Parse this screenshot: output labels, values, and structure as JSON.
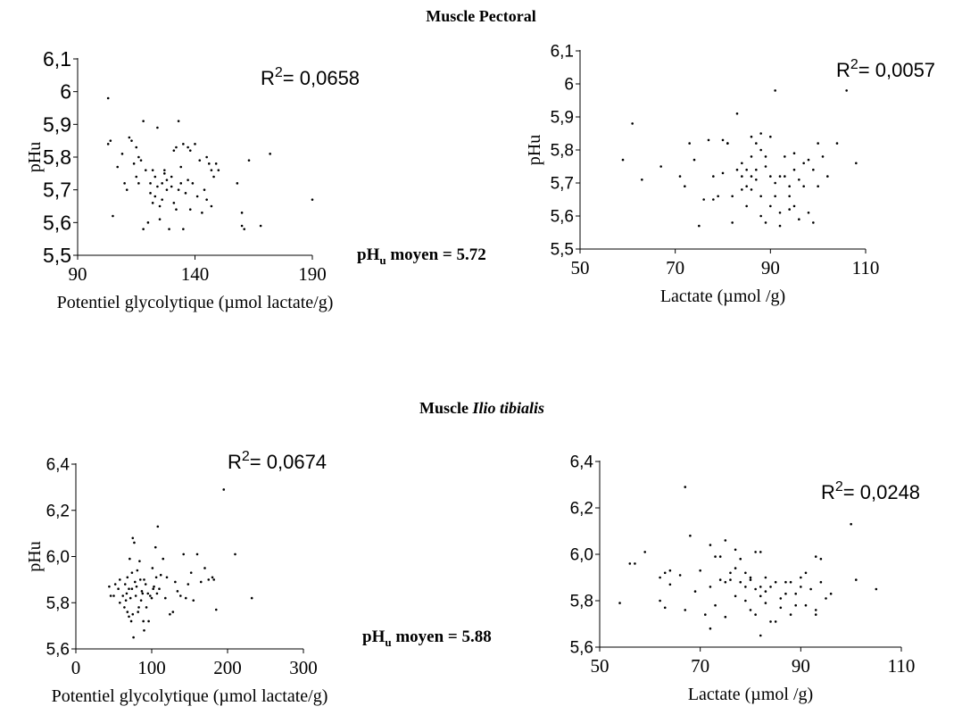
{
  "sections": [
    {
      "title_prefix": "Muscle ",
      "title_italic": "Pectoral",
      "title_italic_is_bold_upright": true
    },
    {
      "title_prefix": "Muscle ",
      "title_italic": "Ilio tibialis",
      "title_italic_is_bold_upright": false
    }
  ],
  "means": [
    {
      "prefix": "pH",
      "sub": "u",
      "suffix": " moyen = 5.72"
    },
    {
      "prefix": "pH",
      "sub": "u",
      "suffix": " moyen = 5.88"
    }
  ],
  "chart_data": [
    {
      "type": "scatter",
      "section": "Muscle Pectoral",
      "xlabel": "Potentiel glycolytique (µmol lactate/g)",
      "ylabel": "pHu",
      "xlim": [
        90,
        190
      ],
      "ylim": [
        5.5,
        6.1
      ],
      "xticks": [
        90,
        140,
        190
      ],
      "xtick_labels": [
        "90",
        "140",
        "190"
      ],
      "yticks": [
        5.5,
        5.6,
        5.7,
        5.8,
        5.9,
        6,
        6.1
      ],
      "ytick_labels": [
        "5,5",
        "5,6",
        "5,7",
        "5,8",
        "5,9",
        "6",
        "6,1"
      ],
      "r2": {
        "prefix": "R",
        "sup": "2",
        "suffix": "= 0,0658"
      },
      "grid": false,
      "points": [
        [
          103,
          5.98
        ],
        [
          103,
          5.84
        ],
        [
          104,
          5.85
        ],
        [
          105,
          5.62
        ],
        [
          107,
          5.77
        ],
        [
          109,
          5.81
        ],
        [
          110,
          5.72
        ],
        [
          111,
          5.7
        ],
        [
          112,
          5.86
        ],
        [
          113,
          5.85
        ],
        [
          114,
          5.78
        ],
        [
          115,
          5.83
        ],
        [
          115,
          5.74
        ],
        [
          116,
          5.8
        ],
        [
          117,
          5.79
        ],
        [
          118,
          5.91
        ],
        [
          118,
          5.58
        ],
        [
          119,
          5.76
        ],
        [
          120,
          5.6
        ],
        [
          121,
          5.72
        ],
        [
          121,
          5.69
        ],
        [
          122,
          5.76
        ],
        [
          122,
          5.66
        ],
        [
          123,
          5.68
        ],
        [
          123,
          5.74
        ],
        [
          124,
          5.89
        ],
        [
          124,
          5.71
        ],
        [
          125,
          5.65
        ],
        [
          125,
          5.61
        ],
        [
          126,
          5.72
        ],
        [
          126,
          5.67
        ],
        [
          127,
          5.76
        ],
        [
          127,
          5.75
        ],
        [
          128,
          5.73
        ],
        [
          128,
          5.7
        ],
        [
          129,
          5.58
        ],
        [
          130,
          5.71
        ],
        [
          130,
          5.74
        ],
        [
          131,
          5.82
        ],
        [
          131,
          5.66
        ],
        [
          132,
          5.64
        ],
        [
          132,
          5.83
        ],
        [
          133,
          5.91
        ],
        [
          133,
          5.7
        ],
        [
          134,
          5.77
        ],
        [
          134,
          5.72
        ],
        [
          135,
          5.58
        ],
        [
          135,
          5.84
        ],
        [
          136,
          5.69
        ],
        [
          137,
          5.73
        ],
        [
          138,
          5.82
        ],
        [
          138,
          5.64
        ],
        [
          139,
          5.72
        ],
        [
          140,
          5.84
        ],
        [
          141,
          5.68
        ],
        [
          142,
          5.79
        ],
        [
          143,
          5.63
        ],
        [
          144,
          5.7
        ],
        [
          145,
          5.8
        ],
        [
          145,
          5.67
        ],
        [
          146,
          5.78
        ],
        [
          147,
          5.76
        ],
        [
          147,
          5.65
        ],
        [
          148,
          5.74
        ],
        [
          149,
          5.78
        ],
        [
          150,
          5.76
        ],
        [
          158,
          5.72
        ],
        [
          160,
          5.63
        ],
        [
          161,
          5.58
        ],
        [
          163,
          5.79
        ],
        [
          168,
          5.59
        ],
        [
          172,
          5.81
        ],
        [
          190,
          5.67
        ],
        [
          160,
          5.59
        ],
        [
          137,
          5.83
        ],
        [
          116,
          5.72
        ]
      ]
    },
    {
      "type": "scatter",
      "section": "Muscle Pectoral",
      "xlabel": "Lactate (µmol /g)",
      "ylabel": "pHu",
      "xlim": [
        50,
        110
      ],
      "ylim": [
        5.5,
        6.1
      ],
      "xticks": [
        50,
        70,
        90,
        110
      ],
      "xtick_labels": [
        "50",
        "70",
        "90",
        "110"
      ],
      "yticks": [
        5.5,
        5.6,
        5.7,
        5.8,
        5.9,
        6,
        6.1
      ],
      "ytick_labels": [
        "5,5",
        "5,6",
        "5,7",
        "5,8",
        "5,9",
        "6",
        "6,1"
      ],
      "r2": {
        "prefix": "R",
        "sup": "2",
        "suffix": "= 0,0057"
      },
      "grid": false,
      "points": [
        [
          59,
          5.77
        ],
        [
          61,
          5.88
        ],
        [
          63,
          5.71
        ],
        [
          67,
          5.75
        ],
        [
          71,
          5.72
        ],
        [
          72,
          5.69
        ],
        [
          73,
          5.82
        ],
        [
          74,
          5.77
        ],
        [
          75,
          5.57
        ],
        [
          76,
          5.65
        ],
        [
          77,
          5.83
        ],
        [
          78,
          5.65
        ],
        [
          79,
          5.66
        ],
        [
          80,
          5.83
        ],
        [
          80,
          5.73
        ],
        [
          81,
          5.82
        ],
        [
          82,
          5.58
        ],
        [
          82,
          5.66
        ],
        [
          83,
          5.91
        ],
        [
          83,
          5.74
        ],
        [
          84,
          5.68
        ],
        [
          84,
          5.72
        ],
        [
          84,
          5.76
        ],
        [
          85,
          5.74
        ],
        [
          85,
          5.69
        ],
        [
          85,
          5.63
        ],
        [
          86,
          5.72
        ],
        [
          86,
          5.68
        ],
        [
          86,
          5.78
        ],
        [
          87,
          5.74
        ],
        [
          87,
          5.82
        ],
        [
          87,
          5.71
        ],
        [
          88,
          5.8
        ],
        [
          88,
          5.66
        ],
        [
          88,
          5.6
        ],
        [
          89,
          5.75
        ],
        [
          89,
          5.58
        ],
        [
          89,
          5.78
        ],
        [
          90,
          5.72
        ],
        [
          90,
          5.63
        ],
        [
          90,
          5.84
        ],
        [
          91,
          5.98
        ],
        [
          91,
          5.7
        ],
        [
          91,
          5.66
        ],
        [
          92,
          5.72
        ],
        [
          92,
          5.61
        ],
        [
          92,
          5.57
        ],
        [
          93,
          5.72
        ],
        [
          93,
          5.78
        ],
        [
          94,
          5.69
        ],
        [
          94,
          5.66
        ],
        [
          94,
          5.62
        ],
        [
          95,
          5.74
        ],
        [
          95,
          5.79
        ],
        [
          95,
          5.63
        ],
        [
          96,
          5.71
        ],
        [
          96,
          5.59
        ],
        [
          97,
          5.69
        ],
        [
          97,
          5.76
        ],
        [
          98,
          5.77
        ],
        [
          98,
          5.61
        ],
        [
          99,
          5.74
        ],
        [
          99,
          5.58
        ],
        [
          100,
          5.82
        ],
        [
          100,
          5.69
        ],
        [
          101,
          5.78
        ],
        [
          102,
          5.72
        ],
        [
          104,
          5.82
        ],
        [
          106,
          5.98
        ],
        [
          108,
          5.76
        ],
        [
          81,
          5.82
        ],
        [
          86,
          5.84
        ],
        [
          78,
          5.72
        ],
        [
          88,
          5.85
        ]
      ]
    },
    {
      "type": "scatter",
      "section": "Muscle Ilio tibialis",
      "xlabel": "Potentiel glycolytique (µmol lactate/g)",
      "ylabel": "pHu",
      "xlim": [
        0,
        300
      ],
      "ylim": [
        5.6,
        6.4
      ],
      "xticks": [
        0,
        100,
        200,
        300
      ],
      "xtick_labels": [
        "0",
        "100",
        "200",
        "300"
      ],
      "yticks": [
        5.6,
        5.8,
        6.0,
        6.2,
        6.4
      ],
      "ytick_labels": [
        "5,6",
        "5,8",
        "6,0",
        "6,2",
        "6,4"
      ],
      "r2": {
        "prefix": "R",
        "sup": "2",
        "suffix": "= 0,0674"
      },
      "grid": false,
      "points": [
        [
          44,
          5.87
        ],
        [
          46,
          5.83
        ],
        [
          50,
          5.83
        ],
        [
          52,
          5.88
        ],
        [
          56,
          5.86
        ],
        [
          58,
          5.9
        ],
        [
          58,
          5.8
        ],
        [
          62,
          5.83
        ],
        [
          64,
          5.78
        ],
        [
          65,
          5.88
        ],
        [
          66,
          5.81
        ],
        [
          67,
          5.84
        ],
        [
          68,
          5.76
        ],
        [
          68,
          5.91
        ],
        [
          70,
          5.86
        ],
        [
          70,
          5.74
        ],
        [
          71,
          5.99
        ],
        [
          72,
          5.82
        ],
        [
          73,
          5.72
        ],
        [
          74,
          5.86
        ],
        [
          74,
          5.93
        ],
        [
          75,
          5.75
        ],
        [
          75,
          6.08
        ],
        [
          76,
          5.65
        ],
        [
          77,
          6.06
        ],
        [
          78,
          5.89
        ],
        [
          79,
          5.83
        ],
        [
          80,
          5.87
        ],
        [
          81,
          5.94
        ],
        [
          82,
          5.76
        ],
        [
          83,
          5.78
        ],
        [
          84,
          5.98
        ],
        [
          85,
          5.9
        ],
        [
          86,
          5.81
        ],
        [
          87,
          5.85
        ],
        [
          88,
          5.84
        ],
        [
          89,
          5.72
        ],
        [
          90,
          5.68
        ],
        [
          90,
          5.9
        ],
        [
          92,
          5.88
        ],
        [
          93,
          5.78
        ],
        [
          95,
          5.84
        ],
        [
          96,
          5.72
        ],
        [
          98,
          5.83
        ],
        [
          100,
          5.82
        ],
        [
          101,
          5.95
        ],
        [
          102,
          5.86
        ],
        [
          103,
          5.87
        ],
        [
          105,
          6.04
        ],
        [
          106,
          5.91
        ],
        [
          107,
          5.84
        ],
        [
          108,
          6.13
        ],
        [
          110,
          5.86
        ],
        [
          112,
          5.92
        ],
        [
          115,
          5.99
        ],
        [
          118,
          5.82
        ],
        [
          120,
          5.91
        ],
        [
          124,
          5.75
        ],
        [
          128,
          5.76
        ],
        [
          131,
          5.89
        ],
        [
          134,
          5.85
        ],
        [
          138,
          5.83
        ],
        [
          142,
          6.01
        ],
        [
          145,
          5.82
        ],
        [
          148,
          5.88
        ],
        [
          152,
          5.93
        ],
        [
          155,
          5.81
        ],
        [
          160,
          6.01
        ],
        [
          165,
          5.89
        ],
        [
          170,
          5.95
        ],
        [
          175,
          5.9
        ],
        [
          180,
          5.91
        ],
        [
          182,
          5.9
        ],
        [
          185,
          5.77
        ],
        [
          195,
          6.29
        ],
        [
          210,
          6.01
        ],
        [
          232,
          5.82
        ]
      ]
    },
    {
      "type": "scatter",
      "section": "Muscle Ilio tibialis",
      "xlabel": "Lactate (µmol /g)",
      "ylabel": "",
      "xlim": [
        50,
        110
      ],
      "ylim": [
        5.6,
        6.4
      ],
      "xticks": [
        50,
        70,
        90,
        110
      ],
      "xtick_labels": [
        "50",
        "70",
        "90",
        "110"
      ],
      "yticks": [
        5.6,
        5.8,
        6.0,
        6.2,
        6.4
      ],
      "ytick_labels": [
        "5,6",
        "5,8",
        "6,0",
        "6,2",
        "6,4"
      ],
      "r2": {
        "prefix": "R",
        "sup": "2",
        "suffix": "= 0,0248"
      },
      "grid": false,
      "points": [
        [
          54,
          5.79
        ],
        [
          56,
          5.96
        ],
        [
          57,
          5.96
        ],
        [
          59,
          6.01
        ],
        [
          62,
          5.8
        ],
        [
          62,
          5.9
        ],
        [
          63,
          5.77
        ],
        [
          63,
          5.92
        ],
        [
          64,
          5.87
        ],
        [
          64,
          5.93
        ],
        [
          66,
          5.91
        ],
        [
          67,
          5.76
        ],
        [
          67,
          6.29
        ],
        [
          68,
          6.08
        ],
        [
          69,
          5.84
        ],
        [
          70,
          5.93
        ],
        [
          71,
          5.74
        ],
        [
          72,
          5.86
        ],
        [
          72,
          6.04
        ],
        [
          72,
          5.68
        ],
        [
          73,
          5.78
        ],
        [
          73,
          5.99
        ],
        [
          74,
          5.89
        ],
        [
          74,
          5.99
        ],
        [
          75,
          6.06
        ],
        [
          75,
          5.88
        ],
        [
          75,
          5.73
        ],
        [
          76,
          5.89
        ],
        [
          76,
          5.92
        ],
        [
          77,
          6.02
        ],
        [
          77,
          5.94
        ],
        [
          77,
          5.82
        ],
        [
          78,
          5.98
        ],
        [
          78,
          5.88
        ],
        [
          79,
          5.8
        ],
        [
          79,
          5.92
        ],
        [
          79,
          5.86
        ],
        [
          80,
          5.89
        ],
        [
          80,
          5.76
        ],
        [
          80,
          5.9
        ],
        [
          81,
          5.85
        ],
        [
          81,
          5.74
        ],
        [
          81,
          6.01
        ],
        [
          82,
          5.86
        ],
        [
          82,
          5.82
        ],
        [
          82,
          5.65
        ],
        [
          82,
          6.01
        ],
        [
          83,
          5.84
        ],
        [
          83,
          5.9
        ],
        [
          83,
          5.79
        ],
        [
          84,
          5.86
        ],
        [
          84,
          5.71
        ],
        [
          85,
          5.88
        ],
        [
          85,
          5.71
        ],
        [
          86,
          5.77
        ],
        [
          86,
          5.81
        ],
        [
          87,
          5.88
        ],
        [
          87,
          5.83
        ],
        [
          88,
          5.74
        ],
        [
          88,
          5.88
        ],
        [
          89,
          5.78
        ],
        [
          89,
          5.83
        ],
        [
          90,
          5.9
        ],
        [
          90,
          5.86
        ],
        [
          91,
          5.92
        ],
        [
          91,
          5.78
        ],
        [
          92,
          5.85
        ],
        [
          93,
          5.99
        ],
        [
          93,
          5.76
        ],
        [
          93,
          5.74
        ],
        [
          94,
          5.98
        ],
        [
          94,
          5.88
        ],
        [
          95,
          5.81
        ],
        [
          96,
          5.83
        ],
        [
          100,
          6.13
        ],
        [
          101,
          5.89
        ],
        [
          105,
          5.85
        ]
      ]
    }
  ]
}
